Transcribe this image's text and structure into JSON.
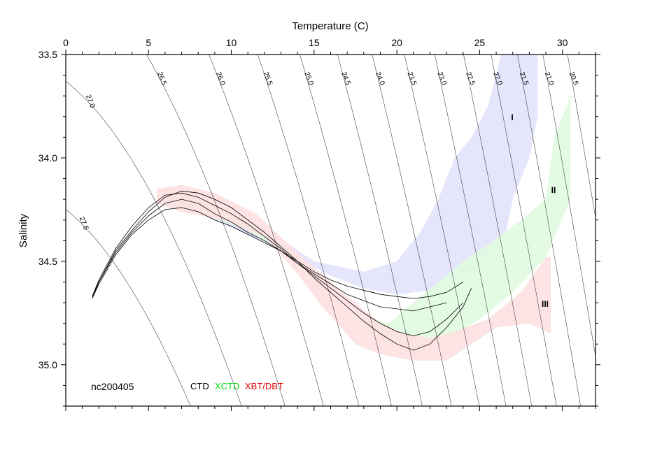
{
  "chart_data": {
    "type": "scatter",
    "title": "",
    "xlabel": "Temperature (C)",
    "ylabel": "Salinity",
    "xlim": [
      0,
      32
    ],
    "ylim": [
      35.2,
      33.5
    ],
    "x_axis_position": "top",
    "y_axis_inverted": true,
    "x_ticks": [
      0,
      5,
      10,
      15,
      20,
      25,
      30
    ],
    "y_ticks": [
      33.5,
      34.0,
      34.5,
      35.0
    ],
    "y_tick_labels": [
      "33.5",
      "34.0",
      "34.5",
      "35.0"
    ],
    "isopycnals": [
      {
        "label": "27.5",
        "value": 27.5
      },
      {
        "label": "27.0",
        "value": 27.0
      },
      {
        "label": "26.5",
        "value": 26.5
      },
      {
        "label": "26.0",
        "value": 26.0
      },
      {
        "label": "25.5",
        "value": 25.5
      },
      {
        "label": "25.0",
        "value": 25.0
      },
      {
        "label": "24.5",
        "value": 24.5
      },
      {
        "label": "24.0",
        "value": 24.0
      },
      {
        "label": "23.5",
        "value": 23.5
      },
      {
        "label": "23.0",
        "value": 23.0
      },
      {
        "label": "22.5",
        "value": 22.5
      },
      {
        "label": "22.0",
        "value": 22.0
      },
      {
        "label": "21.5",
        "value": 21.5
      },
      {
        "label": "21.0",
        "value": 21.0
      },
      {
        "label": "20.5",
        "value": 20.5
      }
    ],
    "regions": [
      {
        "name": "I",
        "color": "#e2e2fb",
        "polygon": [
          [
            6.2,
            34.22
          ],
          [
            9,
            34.3
          ],
          [
            12,
            34.41
          ],
          [
            14,
            34.49
          ],
          [
            16,
            34.57
          ],
          [
            18,
            34.63
          ],
          [
            20,
            34.66
          ],
          [
            22,
            34.64
          ],
          [
            24,
            34.57
          ],
          [
            25.5,
            34.5
          ],
          [
            26.5,
            34.4
          ],
          [
            27,
            34.2
          ],
          [
            28,
            34.0
          ],
          [
            28.5,
            33.8
          ],
          [
            28.5,
            33.5
          ],
          [
            26.3,
            33.5
          ],
          [
            25.5,
            33.75
          ],
          [
            24.5,
            33.9
          ],
          [
            23.5,
            34.0
          ],
          [
            22.5,
            34.2
          ],
          [
            21.5,
            34.35
          ],
          [
            20,
            34.5
          ],
          [
            18,
            34.55
          ],
          [
            15,
            34.5
          ],
          [
            12,
            34.34
          ],
          [
            9,
            34.25
          ],
          [
            7,
            34.2
          ]
        ]
      },
      {
        "name": "II",
        "color": "#e0fbe0",
        "polygon": [
          [
            6,
            34.15
          ],
          [
            8.5,
            34.2
          ],
          [
            11,
            34.3
          ],
          [
            13.5,
            34.45
          ],
          [
            15.5,
            34.6
          ],
          [
            17,
            34.73
          ],
          [
            18.5,
            34.85
          ],
          [
            20,
            34.9
          ],
          [
            21.5,
            34.92
          ],
          [
            23,
            34.88
          ],
          [
            25,
            34.78
          ],
          [
            27,
            34.65
          ],
          [
            29,
            34.48
          ],
          [
            30.5,
            34.2
          ],
          [
            30.5,
            33.7
          ],
          [
            29.5,
            33.9
          ],
          [
            29,
            34.2
          ],
          [
            27.5,
            34.3
          ],
          [
            25.5,
            34.42
          ],
          [
            24,
            34.5
          ],
          [
            22.5,
            34.6
          ],
          [
            21,
            34.7
          ],
          [
            19.5,
            34.8
          ],
          [
            18,
            34.78
          ],
          [
            16.5,
            34.7
          ],
          [
            15,
            34.6
          ],
          [
            13,
            34.45
          ],
          [
            11,
            34.35
          ],
          [
            8.5,
            34.28
          ],
          [
            6.5,
            34.22
          ]
        ]
      },
      {
        "name": "III",
        "color": "#fde0e0",
        "polygon": [
          [
            5.5,
            34.15
          ],
          [
            7,
            34.13
          ],
          [
            9,
            34.17
          ],
          [
            11.5,
            34.27
          ],
          [
            14,
            34.46
          ],
          [
            16,
            34.6
          ],
          [
            17.5,
            34.7
          ],
          [
            19,
            34.8
          ],
          [
            20.5,
            34.85
          ],
          [
            22,
            34.87
          ],
          [
            23.5,
            34.84
          ],
          [
            25.5,
            34.78
          ],
          [
            27.5,
            34.65
          ],
          [
            29,
            34.48
          ],
          [
            29.3,
            34.48
          ],
          [
            29.3,
            34.85
          ],
          [
            28,
            34.8
          ],
          [
            26,
            34.82
          ],
          [
            24.5,
            34.9
          ],
          [
            23,
            34.98
          ],
          [
            21,
            34.98
          ],
          [
            19,
            34.95
          ],
          [
            17.5,
            34.9
          ],
          [
            15.5,
            34.72
          ],
          [
            14,
            34.56
          ],
          [
            12,
            34.38
          ],
          [
            9.5,
            34.3
          ],
          [
            7,
            34.26
          ],
          [
            5.5,
            34.22
          ]
        ]
      }
    ],
    "series": [
      {
        "points": [
          [
            1.6,
            34.67
          ],
          [
            2,
            34.6
          ],
          [
            3,
            34.45
          ],
          [
            4,
            34.35
          ],
          [
            5,
            34.26
          ],
          [
            6,
            34.19
          ],
          [
            7,
            34.16
          ],
          [
            8,
            34.17
          ],
          [
            9,
            34.2
          ],
          [
            10,
            34.24
          ],
          [
            11,
            34.3
          ],
          [
            12,
            34.36
          ],
          [
            13,
            34.43
          ],
          [
            14,
            34.5
          ],
          [
            15,
            34.58
          ],
          [
            16,
            34.65
          ],
          [
            17,
            34.72
          ],
          [
            18,
            34.79
          ],
          [
            19,
            34.85
          ],
          [
            20,
            34.9
          ],
          [
            21,
            34.93
          ],
          [
            22,
            34.9
          ],
          [
            23,
            34.82
          ],
          [
            24,
            34.72
          ],
          [
            24.5,
            34.63
          ]
        ]
      },
      {
        "points": [
          [
            1.6,
            34.68
          ],
          [
            2,
            34.61
          ],
          [
            3,
            34.47
          ],
          [
            4,
            34.37
          ],
          [
            5,
            34.3
          ],
          [
            6,
            34.25
          ],
          [
            7,
            34.24
          ],
          [
            8,
            34.26
          ],
          [
            9,
            34.3
          ],
          [
            10,
            34.33
          ],
          [
            11,
            34.37
          ],
          [
            12,
            34.41
          ],
          [
            13,
            34.45
          ],
          [
            14,
            34.5
          ],
          [
            15,
            34.55
          ],
          [
            16,
            34.59
          ],
          [
            17,
            34.62
          ],
          [
            18,
            34.64
          ],
          [
            19,
            34.66
          ],
          [
            20,
            34.67
          ],
          [
            21,
            34.68
          ],
          [
            22,
            34.67
          ],
          [
            23,
            34.65
          ],
          [
            24,
            34.6
          ]
        ]
      },
      {
        "points": [
          [
            1.6,
            34.67
          ],
          [
            2,
            34.59
          ],
          [
            3,
            34.44
          ],
          [
            4,
            34.33
          ],
          [
            5,
            34.24
          ],
          [
            6,
            34.18
          ],
          [
            7,
            34.17
          ],
          [
            8,
            34.19
          ],
          [
            9,
            34.23
          ],
          [
            10,
            34.27
          ],
          [
            11,
            34.32
          ],
          [
            12,
            34.38
          ],
          [
            13,
            34.44
          ],
          [
            14,
            34.51
          ],
          [
            15,
            34.57
          ],
          [
            16,
            34.63
          ],
          [
            17,
            34.69
          ],
          [
            18,
            34.75
          ],
          [
            19,
            34.8
          ],
          [
            20,
            34.84
          ],
          [
            21,
            34.86
          ],
          [
            22,
            34.84
          ],
          [
            23,
            34.78
          ],
          [
            24,
            34.7
          ]
        ]
      },
      {
        "points": [
          [
            1.6,
            34.68
          ],
          [
            2,
            34.6
          ],
          [
            3,
            34.46
          ],
          [
            4,
            34.36
          ],
          [
            5,
            34.28
          ],
          [
            6,
            34.22
          ],
          [
            7,
            34.2
          ],
          [
            8,
            34.22
          ],
          [
            9,
            34.27
          ],
          [
            10,
            34.31
          ],
          [
            11,
            34.36
          ],
          [
            12,
            34.4
          ],
          [
            13,
            34.45
          ],
          [
            14,
            34.51
          ],
          [
            15,
            34.56
          ],
          [
            16,
            34.61
          ],
          [
            17,
            34.66
          ],
          [
            18,
            34.69
          ],
          [
            19,
            34.72
          ],
          [
            20,
            34.73
          ],
          [
            21,
            34.74
          ],
          [
            22,
            34.72
          ],
          [
            23,
            34.7
          ]
        ]
      }
    ]
  },
  "labels": {
    "cruise_id": "nc200405",
    "legend_ctd": "CTD",
    "legend_xctd": "XCTD",
    "legend_xbt": "XBT/DBT",
    "region_1": "I",
    "region_2": "II",
    "region_3": "III"
  },
  "colors": {
    "ctd": "#000000",
    "xctd": "#00dd00",
    "xbt": "#dd0000",
    "frame": "#000000"
  }
}
